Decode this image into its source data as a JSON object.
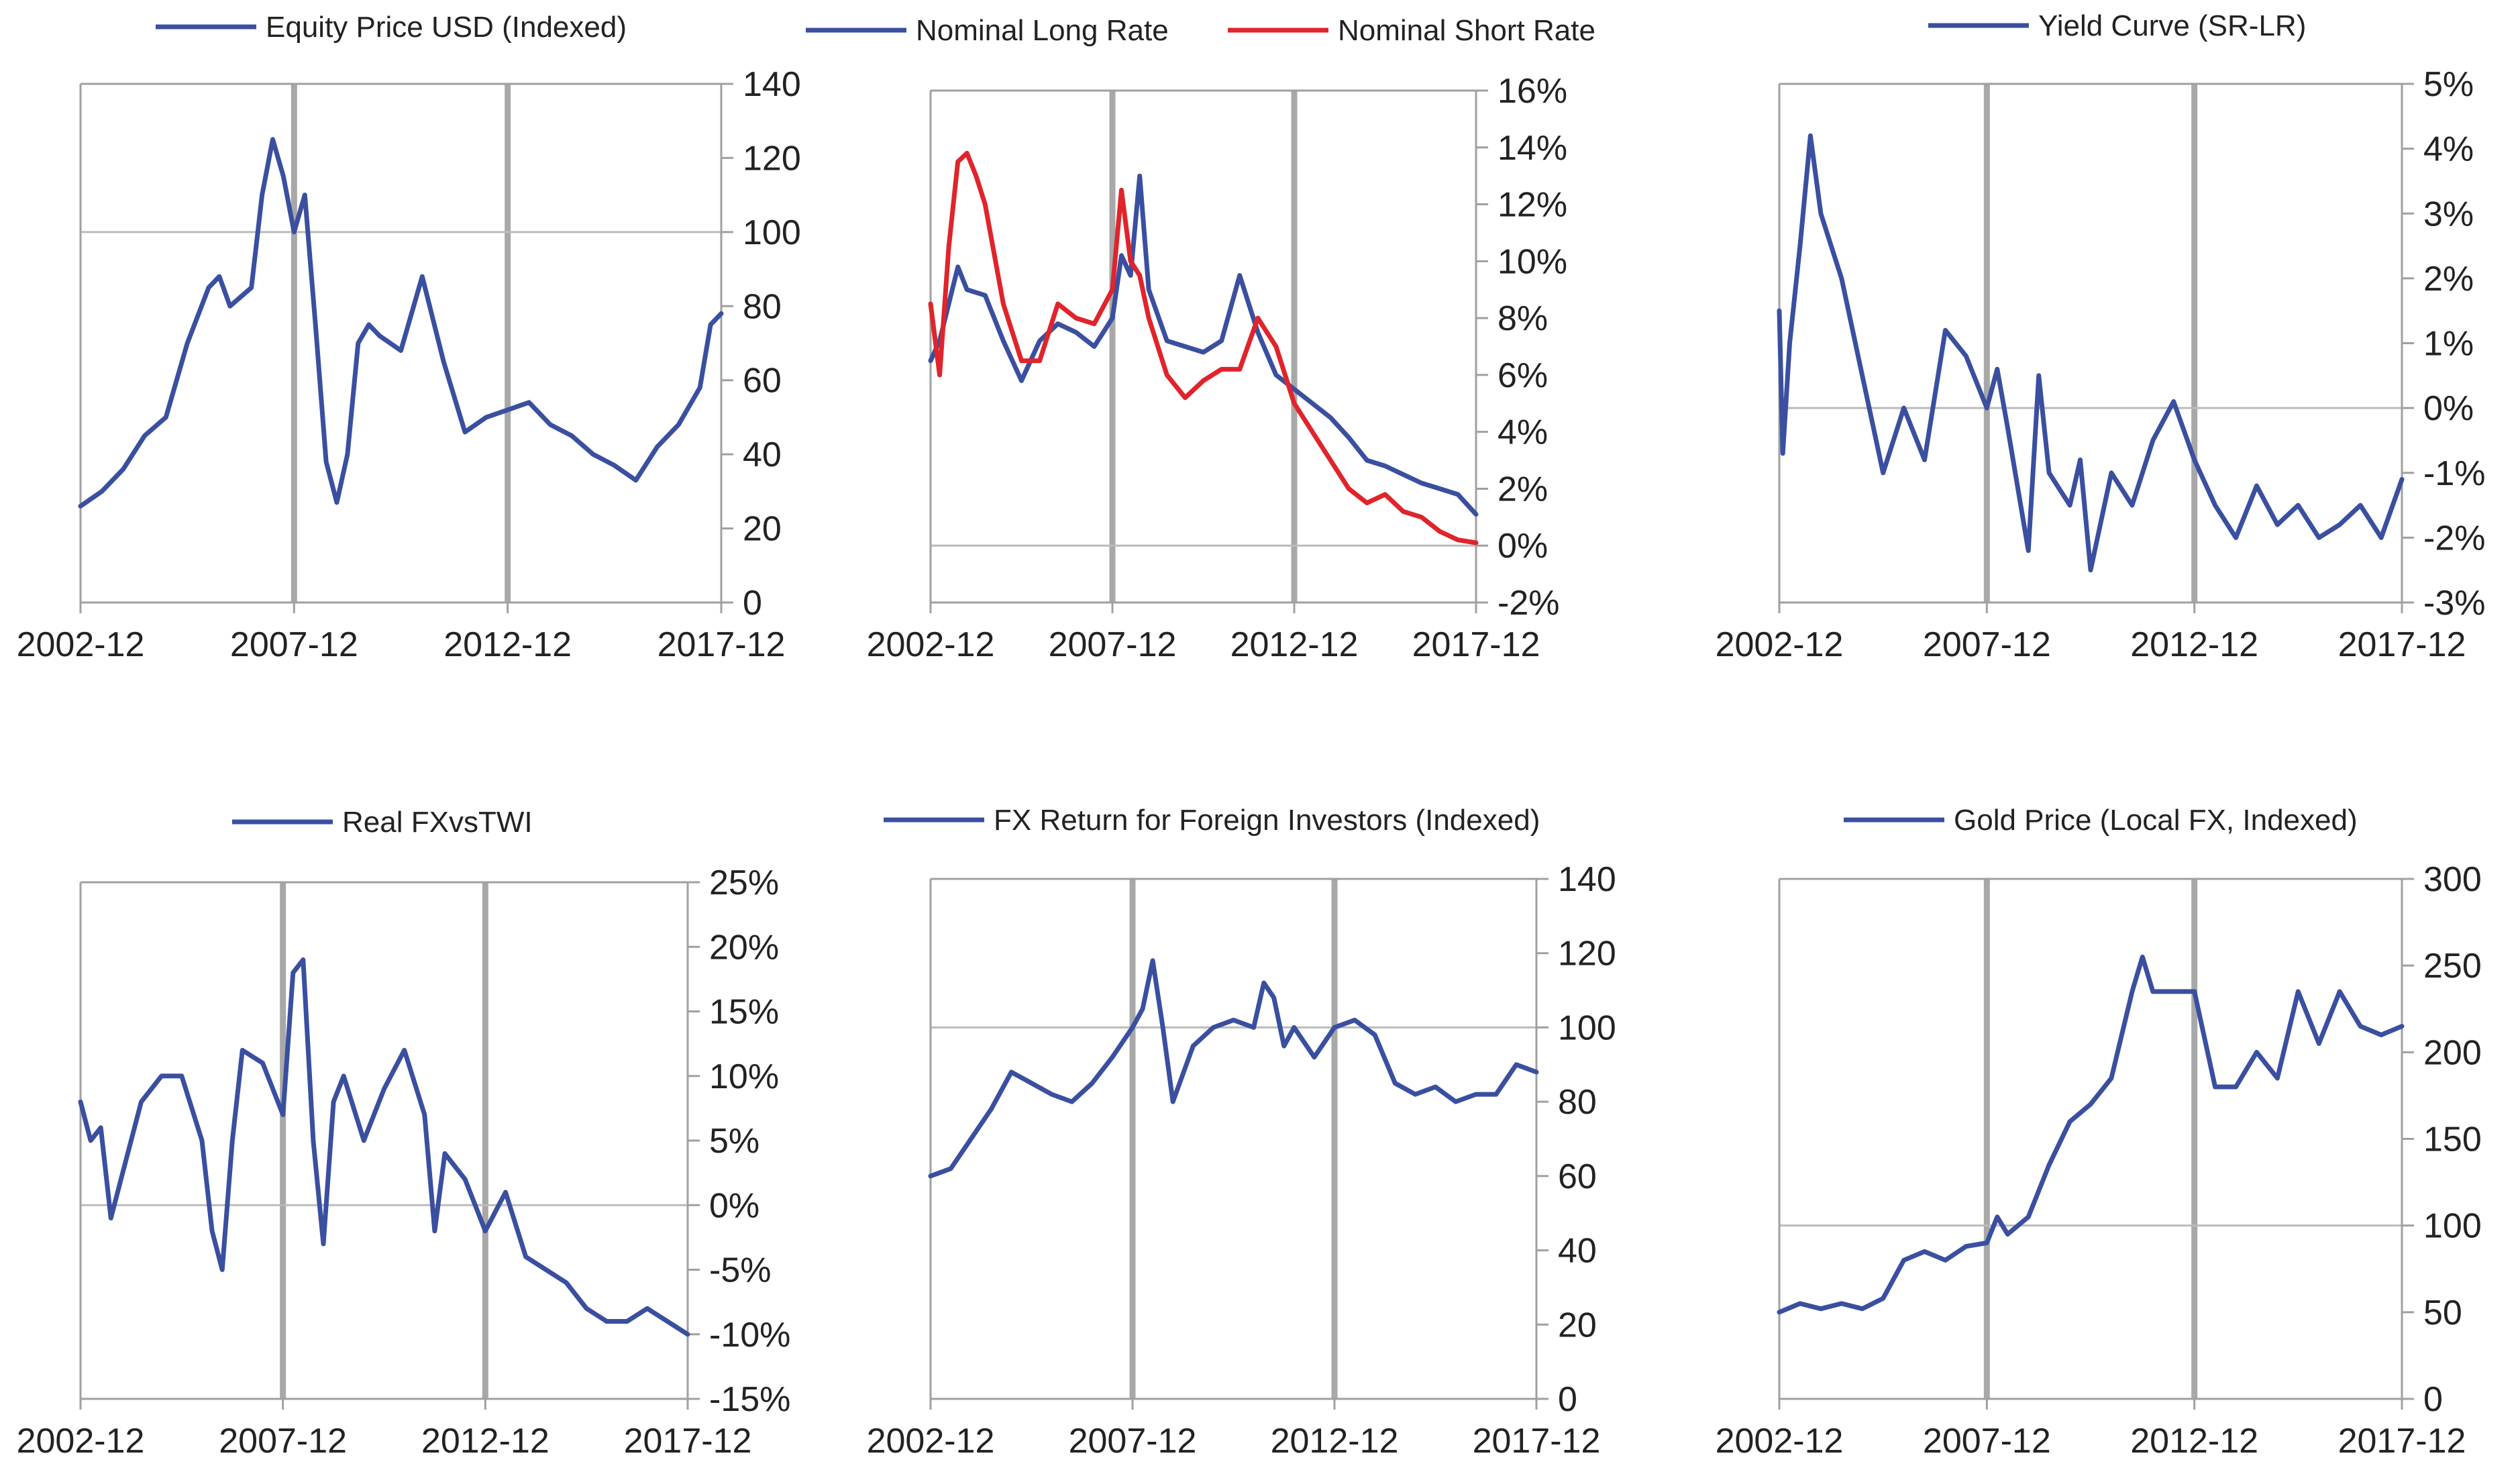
{
  "chart_data": [
    {
      "type": "line",
      "title": "",
      "x_axis": {
        "range": [
          "2002-12",
          "2017-12"
        ],
        "tick_labels": [
          "2002-12",
          "2007-12",
          "2012-12",
          "2017-12"
        ]
      },
      "y_axis": {
        "side": "right",
        "range": [
          0,
          140
        ],
        "tick_values": [
          0,
          20,
          40,
          60,
          80,
          100,
          120,
          140
        ],
        "tick_labels": [
          "0",
          "20",
          "40",
          "60",
          "80",
          "100",
          "120",
          "140"
        ]
      },
      "reference_line": 100,
      "vertical_markers": [
        "2007-12",
        "2012-12"
      ],
      "grid": false,
      "legend": "top-center",
      "series": [
        {
          "name": "Equity Price USD (Indexed)",
          "color": "#3a4fa0",
          "x": [
            "2002-12",
            "2003-06",
            "2003-12",
            "2004-06",
            "2004-12",
            "2005-06",
            "2005-12",
            "2006-03",
            "2006-06",
            "2006-12",
            "2007-03",
            "2007-06",
            "2007-09",
            "2007-12",
            "2008-03",
            "2008-06",
            "2008-09",
            "2008-12",
            "2009-03",
            "2009-06",
            "2009-09",
            "2009-12",
            "2010-06",
            "2010-12",
            "2011-06",
            "2011-12",
            "2012-06",
            "2012-12",
            "2013-06",
            "2013-12",
            "2014-06",
            "2014-12",
            "2015-06",
            "2015-12",
            "2016-06",
            "2016-12",
            "2017-06",
            "2017-09",
            "2017-12"
          ],
          "values": [
            26,
            30,
            36,
            45,
            50,
            70,
            85,
            88,
            80,
            85,
            110,
            125,
            115,
            100,
            110,
            75,
            38,
            27,
            40,
            70,
            75,
            72,
            68,
            88,
            65,
            46,
            50,
            52,
            54,
            48,
            45,
            40,
            37,
            33,
            42,
            48,
            58,
            75,
            78
          ]
        }
      ]
    },
    {
      "type": "line",
      "title": "",
      "x_axis": {
        "range": [
          "2002-12",
          "2017-12"
        ],
        "tick_labels": [
          "2002-12",
          "2007-12",
          "2012-12",
          "2017-12"
        ]
      },
      "y_axis": {
        "side": "right",
        "range": [
          -0.02,
          0.16
        ],
        "tick_values": [
          -0.02,
          0,
          0.02,
          0.04,
          0.06,
          0.08,
          0.1,
          0.12,
          0.14,
          0.16
        ],
        "tick_labels": [
          "-2%",
          "0%",
          "2%",
          "4%",
          "6%",
          "8%",
          "10%",
          "12%",
          "14%",
          "16%"
        ]
      },
      "reference_line": 0,
      "vertical_markers": [
        "2007-12",
        "2012-12"
      ],
      "grid": false,
      "legend": "top-center",
      "series": [
        {
          "name": "Nominal Long Rate",
          "color": "#3a4fa0",
          "x": [
            "2002-12",
            "2003-03",
            "2003-06",
            "2003-09",
            "2003-12",
            "2004-06",
            "2004-12",
            "2005-06",
            "2005-12",
            "2006-06",
            "2006-12",
            "2007-06",
            "2007-12",
            "2008-03",
            "2008-06",
            "2008-09",
            "2008-12",
            "2009-06",
            "2009-12",
            "2010-06",
            "2010-12",
            "2011-06",
            "2011-12",
            "2012-06",
            "2012-12",
            "2013-06",
            "2013-12",
            "2014-06",
            "2014-12",
            "2015-06",
            "2015-12",
            "2016-06",
            "2016-12",
            "2017-06",
            "2017-12"
          ],
          "values": [
            0.065,
            0.072,
            0.085,
            0.098,
            0.09,
            0.088,
            0.072,
            0.058,
            0.072,
            0.078,
            0.075,
            0.07,
            0.08,
            0.102,
            0.095,
            0.13,
            0.09,
            0.072,
            0.07,
            0.068,
            0.072,
            0.095,
            0.075,
            0.06,
            0.055,
            0.05,
            0.045,
            0.038,
            0.03,
            0.028,
            0.025,
            0.022,
            0.02,
            0.018,
            0.011
          ]
        },
        {
          "name": "Nominal Short Rate",
          "color": "#e0242b",
          "x": [
            "2002-12",
            "2003-03",
            "2003-06",
            "2003-09",
            "2003-12",
            "2004-03",
            "2004-06",
            "2004-12",
            "2005-06",
            "2005-12",
            "2006-06",
            "2006-12",
            "2007-06",
            "2007-12",
            "2008-03",
            "2008-06",
            "2008-09",
            "2008-12",
            "2009-06",
            "2009-12",
            "2010-06",
            "2010-12",
            "2011-06",
            "2011-12",
            "2012-06",
            "2012-12",
            "2013-06",
            "2013-12",
            "2014-06",
            "2014-12",
            "2015-06",
            "2015-12",
            "2016-06",
            "2016-12",
            "2017-06",
            "2017-12"
          ],
          "values": [
            0.085,
            0.06,
            0.105,
            0.135,
            0.138,
            0.13,
            0.12,
            0.085,
            0.065,
            0.065,
            0.085,
            0.08,
            0.078,
            0.09,
            0.125,
            0.1,
            0.095,
            0.08,
            0.06,
            0.052,
            0.058,
            0.062,
            0.062,
            0.08,
            0.07,
            0.05,
            0.04,
            0.03,
            0.02,
            0.015,
            0.018,
            0.012,
            0.01,
            0.005,
            0.002,
            0.001
          ]
        }
      ]
    },
    {
      "type": "line",
      "title": "",
      "x_axis": {
        "range": [
          "2002-12",
          "2017-12"
        ],
        "tick_labels": [
          "2002-12",
          "2007-12",
          "2012-12",
          "2017-12"
        ]
      },
      "y_axis": {
        "side": "right",
        "range": [
          -0.03,
          0.05
        ],
        "tick_values": [
          -0.03,
          -0.02,
          -0.01,
          0,
          0.01,
          0.02,
          0.03,
          0.04,
          0.05
        ],
        "tick_labels": [
          "-3%",
          "-2%",
          "-1%",
          "0%",
          "1%",
          "2%",
          "3%",
          "4%",
          "5%"
        ]
      },
      "reference_line": 0,
      "vertical_markers": [
        "2007-12",
        "2012-12"
      ],
      "grid": false,
      "legend": "top-center",
      "series": [
        {
          "name": "Yield Curve (SR-LR)",
          "color": "#3a4fa0",
          "x": [
            "2002-12",
            "2003-01",
            "2003-03",
            "2003-06",
            "2003-09",
            "2003-12",
            "2004-03",
            "2004-06",
            "2004-12",
            "2005-06",
            "2005-12",
            "2006-06",
            "2006-12",
            "2007-06",
            "2007-12",
            "2008-03",
            "2008-06",
            "2008-12",
            "2009-03",
            "2009-06",
            "2009-12",
            "2010-03",
            "2010-06",
            "2010-12",
            "2011-06",
            "2011-12",
            "2012-06",
            "2012-12",
            "2013-06",
            "2013-12",
            "2014-06",
            "2014-12",
            "2015-06",
            "2015-12",
            "2016-06",
            "2016-12",
            "2017-06",
            "2017-12"
          ],
          "values": [
            0.015,
            -0.007,
            0.01,
            0.025,
            0.042,
            0.03,
            0.025,
            0.02,
            0.005,
            -0.01,
            0.0,
            -0.008,
            0.012,
            0.008,
            0.0,
            0.006,
            -0.003,
            -0.022,
            0.005,
            -0.01,
            -0.015,
            -0.008,
            -0.025,
            -0.01,
            -0.015,
            -0.005,
            0.001,
            -0.008,
            -0.015,
            -0.02,
            -0.012,
            -0.018,
            -0.015,
            -0.02,
            -0.018,
            -0.015,
            -0.02,
            -0.011
          ]
        }
      ]
    },
    {
      "type": "line",
      "title": "",
      "x_axis": {
        "range": [
          "2002-12",
          "2017-12"
        ],
        "tick_labels": [
          "2002-12",
          "2007-12",
          "2012-12",
          "2017-12"
        ]
      },
      "y_axis": {
        "side": "right",
        "range": [
          -0.15,
          0.25
        ],
        "tick_values": [
          -0.15,
          -0.1,
          -0.05,
          0,
          0.05,
          0.1,
          0.15,
          0.2,
          0.25
        ],
        "tick_labels": [
          "-15%",
          "-10%",
          "-5%",
          "0%",
          "5%",
          "10%",
          "15%",
          "20%",
          "25%"
        ]
      },
      "reference_line": 0,
      "vertical_markers": [
        "2007-12",
        "2012-12"
      ],
      "grid": false,
      "legend": "top-center",
      "series": [
        {
          "name": "Real FXvsTWI",
          "color": "#3a4fa0",
          "x": [
            "2002-12",
            "2003-03",
            "2003-06",
            "2003-09",
            "2003-12",
            "2004-06",
            "2004-12",
            "2005-06",
            "2005-12",
            "2006-03",
            "2006-06",
            "2006-09",
            "2006-12",
            "2007-06",
            "2007-12",
            "2008-03",
            "2008-06",
            "2008-09",
            "2008-12",
            "2009-03",
            "2009-06",
            "2009-12",
            "2010-06",
            "2010-12",
            "2011-06",
            "2011-09",
            "2011-12",
            "2012-06",
            "2012-12",
            "2013-06",
            "2013-12",
            "2014-06",
            "2014-12",
            "2015-06",
            "2015-12",
            "2016-06",
            "2016-12",
            "2017-06",
            "2017-12"
          ],
          "values": [
            0.08,
            0.05,
            0.06,
            -0.01,
            0.02,
            0.08,
            0.1,
            0.1,
            0.05,
            -0.02,
            -0.05,
            0.05,
            0.12,
            0.11,
            0.07,
            0.18,
            0.19,
            0.05,
            -0.03,
            0.08,
            0.1,
            0.05,
            0.09,
            0.12,
            0.07,
            -0.02,
            0.04,
            0.02,
            -0.02,
            0.01,
            -0.04,
            -0.05,
            -0.06,
            -0.08,
            -0.09,
            -0.09,
            -0.08,
            -0.09,
            -0.1
          ]
        }
      ]
    },
    {
      "type": "line",
      "title": "",
      "x_axis": {
        "range": [
          "2002-12",
          "2017-12"
        ],
        "tick_labels": [
          "2002-12",
          "2007-12",
          "2012-12",
          "2017-12"
        ]
      },
      "y_axis": {
        "side": "right",
        "range": [
          0,
          140
        ],
        "tick_values": [
          0,
          20,
          40,
          60,
          80,
          100,
          120,
          140
        ],
        "tick_labels": [
          "0",
          "20",
          "40",
          "60",
          "80",
          "100",
          "120",
          "140"
        ]
      },
      "reference_line": 100,
      "vertical_markers": [
        "2007-12",
        "2012-12"
      ],
      "grid": false,
      "legend": "top-center",
      "series": [
        {
          "name": "FX Return for Foreign Investors (Indexed)",
          "color": "#3a4fa0",
          "x": [
            "2002-12",
            "2003-06",
            "2003-12",
            "2004-06",
            "2004-12",
            "2005-06",
            "2005-12",
            "2006-06",
            "2006-12",
            "2007-06",
            "2007-12",
            "2008-03",
            "2008-06",
            "2008-09",
            "2008-12",
            "2009-06",
            "2009-12",
            "2010-06",
            "2010-12",
            "2011-03",
            "2011-06",
            "2011-09",
            "2011-12",
            "2012-06",
            "2012-12",
            "2013-06",
            "2013-12",
            "2014-06",
            "2014-12",
            "2015-06",
            "2015-12",
            "2016-06",
            "2016-12",
            "2017-06",
            "2017-12"
          ],
          "values": [
            60,
            62,
            70,
            78,
            88,
            85,
            82,
            80,
            85,
            92,
            100,
            105,
            118,
            100,
            80,
            95,
            100,
            102,
            100,
            112,
            108,
            95,
            100,
            92,
            100,
            102,
            98,
            85,
            82,
            84,
            80,
            82,
            82,
            90,
            88
          ]
        }
      ]
    },
    {
      "type": "line",
      "title": "",
      "x_axis": {
        "range": [
          "2002-12",
          "2017-12"
        ],
        "tick_labels": [
          "2002-12",
          "2007-12",
          "2012-12",
          "2017-12"
        ]
      },
      "y_axis": {
        "side": "right",
        "range": [
          0,
          300
        ],
        "tick_values": [
          0,
          50,
          100,
          150,
          200,
          250,
          300
        ],
        "tick_labels": [
          "0",
          "50",
          "100",
          "150",
          "200",
          "250",
          "300"
        ]
      },
      "reference_line": 100,
      "vertical_markers": [
        "2007-12",
        "2012-12"
      ],
      "grid": false,
      "legend": "top-center",
      "series": [
        {
          "name": "Gold Price (Local FX, Indexed)",
          "color": "#3a4fa0",
          "x": [
            "2002-12",
            "2003-06",
            "2003-12",
            "2004-06",
            "2004-12",
            "2005-06",
            "2005-12",
            "2006-06",
            "2006-12",
            "2007-06",
            "2007-12",
            "2008-03",
            "2008-06",
            "2008-12",
            "2009-06",
            "2009-12",
            "2010-06",
            "2010-12",
            "2011-06",
            "2011-09",
            "2011-12",
            "2012-06",
            "2012-12",
            "2013-06",
            "2013-12",
            "2014-06",
            "2014-12",
            "2015-06",
            "2015-12",
            "2016-06",
            "2016-12",
            "2017-06",
            "2017-12"
          ],
          "values": [
            50,
            55,
            52,
            55,
            52,
            58,
            80,
            85,
            80,
            88,
            90,
            105,
            95,
            105,
            135,
            160,
            170,
            185,
            235,
            255,
            235,
            235,
            235,
            180,
            180,
            200,
            185,
            235,
            205,
            235,
            215,
            210,
            215
          ]
        }
      ]
    }
  ]
}
